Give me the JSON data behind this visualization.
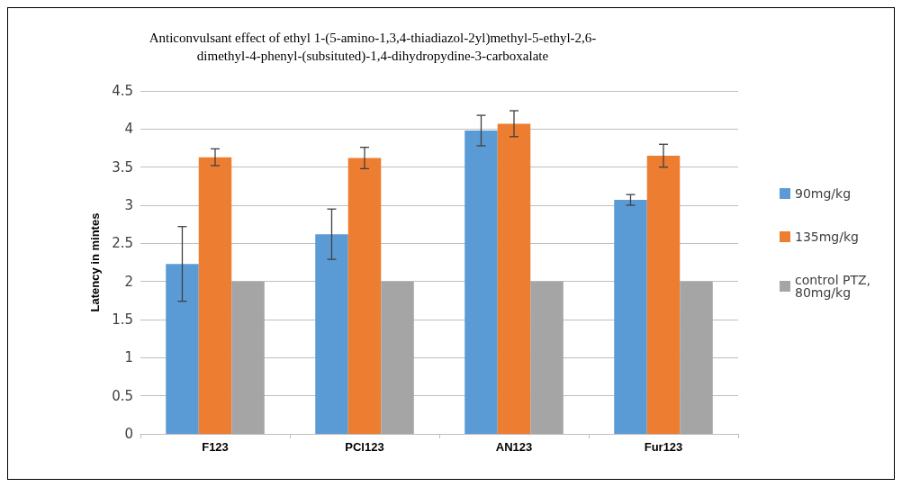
{
  "chart_data": {
    "type": "bar",
    "title": "Anticonvulsant effect of ethyl 1-(5-amino-1,3,4-thiadiazol-2yl)methyl-5-ethyl-2,6-\ndimethyl-4-phenyl-(subsituted)-1,4-dihydropydine-3-carboxalate",
    "ylabel": "Latency in mintes",
    "categories": [
      "F123",
      "PCl123",
      "AN123",
      "Fur123"
    ],
    "series": [
      {
        "name": "90mg/kg",
        "color": "#5b9bd5",
        "values": [
          2.23,
          2.62,
          3.98,
          3.07
        ],
        "errors": [
          0.49,
          0.33,
          0.2,
          0.07
        ]
      },
      {
        "name": "135mg/kg",
        "color": "#ed7d31",
        "values": [
          3.63,
          3.62,
          4.07,
          3.65
        ],
        "errors": [
          0.11,
          0.14,
          0.17,
          0.15
        ]
      },
      {
        "name": "control PTZ,80mg/kg",
        "color": "#a5a5a5",
        "values": [
          2.0,
          2.0,
          2.0,
          2.0
        ]
      }
    ],
    "ylim": [
      0,
      4.5
    ],
    "yticks": [
      0,
      0.5,
      1,
      1.5,
      2,
      2.5,
      3,
      3.5,
      4,
      4.5
    ],
    "grid": "y",
    "legend": "right"
  }
}
